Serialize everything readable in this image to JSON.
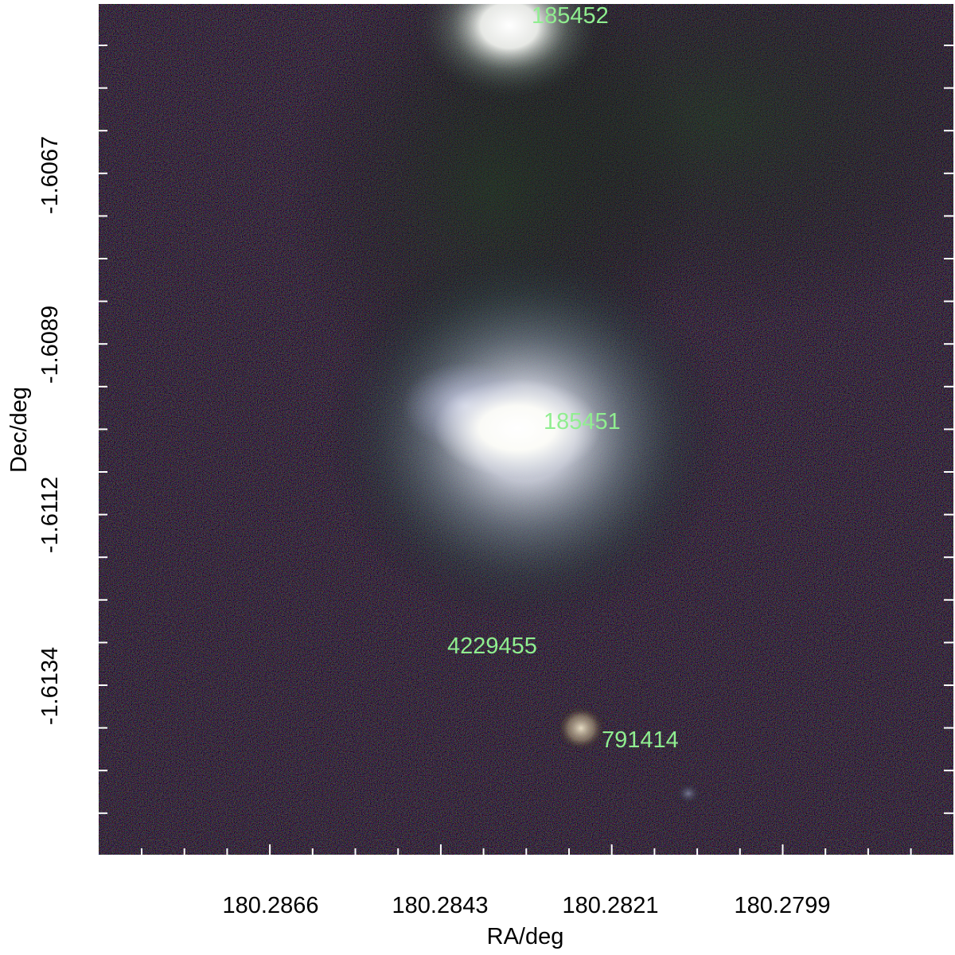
{
  "figure": {
    "xlabel": "RA/deg",
    "ylabel": "Dec/deg",
    "x_tick_labels": [
      "180.2866",
      "180.2843",
      "180.2821",
      "180.2799"
    ],
    "y_tick_labels": [
      "-1.6067",
      "-1.6089",
      "-1.6112",
      "-1.6134"
    ]
  },
  "objects": [
    {
      "id": "185452"
    },
    {
      "id": "185451"
    },
    {
      "id": "4229455"
    },
    {
      "id": "791414"
    }
  ],
  "colors": {
    "label_color": "#90ee90",
    "background": "#000000",
    "axis_color": "#ffffff"
  }
}
